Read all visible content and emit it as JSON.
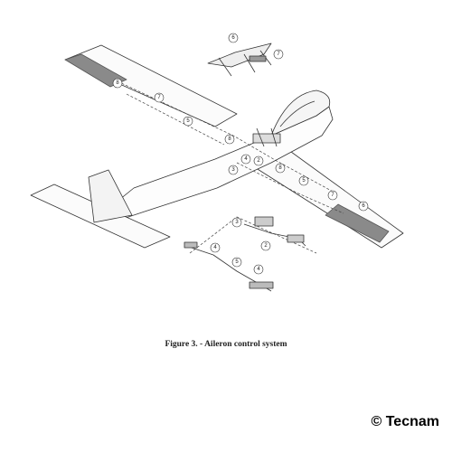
{
  "figure": {
    "caption": "Figure 3. - Aileron control system",
    "copyright": "© Tecnam",
    "callouts": [
      {
        "id": "c-8a",
        "label": "8"
      },
      {
        "id": "c-7a",
        "label": "7"
      },
      {
        "id": "c-6a",
        "label": "6"
      },
      {
        "id": "c-7b",
        "label": "7"
      },
      {
        "id": "c-5a",
        "label": "5"
      },
      {
        "id": "c-8b",
        "label": "8"
      },
      {
        "id": "c-4a",
        "label": "4"
      },
      {
        "id": "c-2a",
        "label": "2"
      },
      {
        "id": "c-3a",
        "label": "3"
      },
      {
        "id": "c-8c",
        "label": "8"
      },
      {
        "id": "c-5b",
        "label": "5"
      },
      {
        "id": "c-7c",
        "label": "7"
      },
      {
        "id": "c-6b",
        "label": "6"
      },
      {
        "id": "c-3b",
        "label": "3"
      },
      {
        "id": "c-2b",
        "label": "2"
      },
      {
        "id": "c-4b",
        "label": "4"
      },
      {
        "id": "c-5c",
        "label": "5"
      },
      {
        "id": "c-4c",
        "label": "4"
      }
    ]
  }
}
